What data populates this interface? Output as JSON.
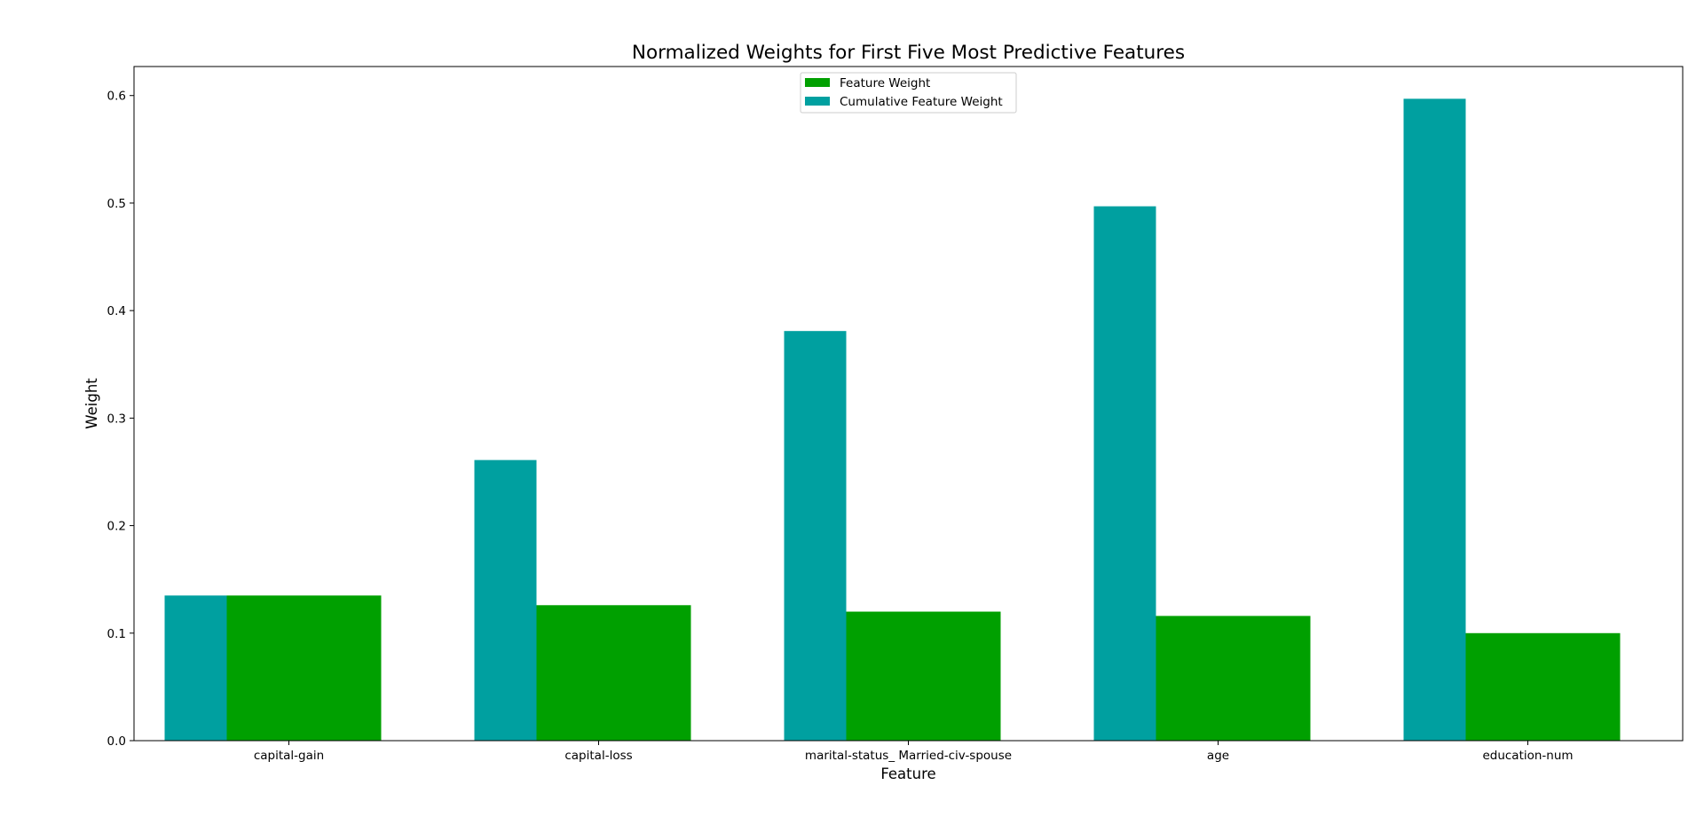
{
  "chart_data": {
    "type": "bar",
    "title": "Normalized Weights for First Five Most Predictive Features",
    "xlabel": "Feature",
    "ylabel": "Weight",
    "categories": [
      "capital-gain",
      "capital-loss",
      "marital-status_ Married-civ-spouse",
      "age",
      "education-num"
    ],
    "series": [
      {
        "name": "Feature Weight",
        "color": "#00a000",
        "values": [
          0.135,
          0.126,
          0.12,
          0.116,
          0.1
        ]
      },
      {
        "name": "Cumulative Feature Weight",
        "color": "#00a0a0",
        "values": [
          0.135,
          0.261,
          0.381,
          0.497,
          0.597
        ]
      }
    ],
    "ylim": [
      0,
      0.627
    ],
    "yticks": [
      0.0,
      0.1,
      0.2,
      0.3,
      0.4,
      0.5,
      0.6
    ],
    "ytick_labels": [
      "0.0",
      "0.1",
      "0.2",
      "0.3",
      "0.4",
      "0.5",
      "0.6"
    ],
    "grid": false,
    "legend_position": "upper-center"
  }
}
